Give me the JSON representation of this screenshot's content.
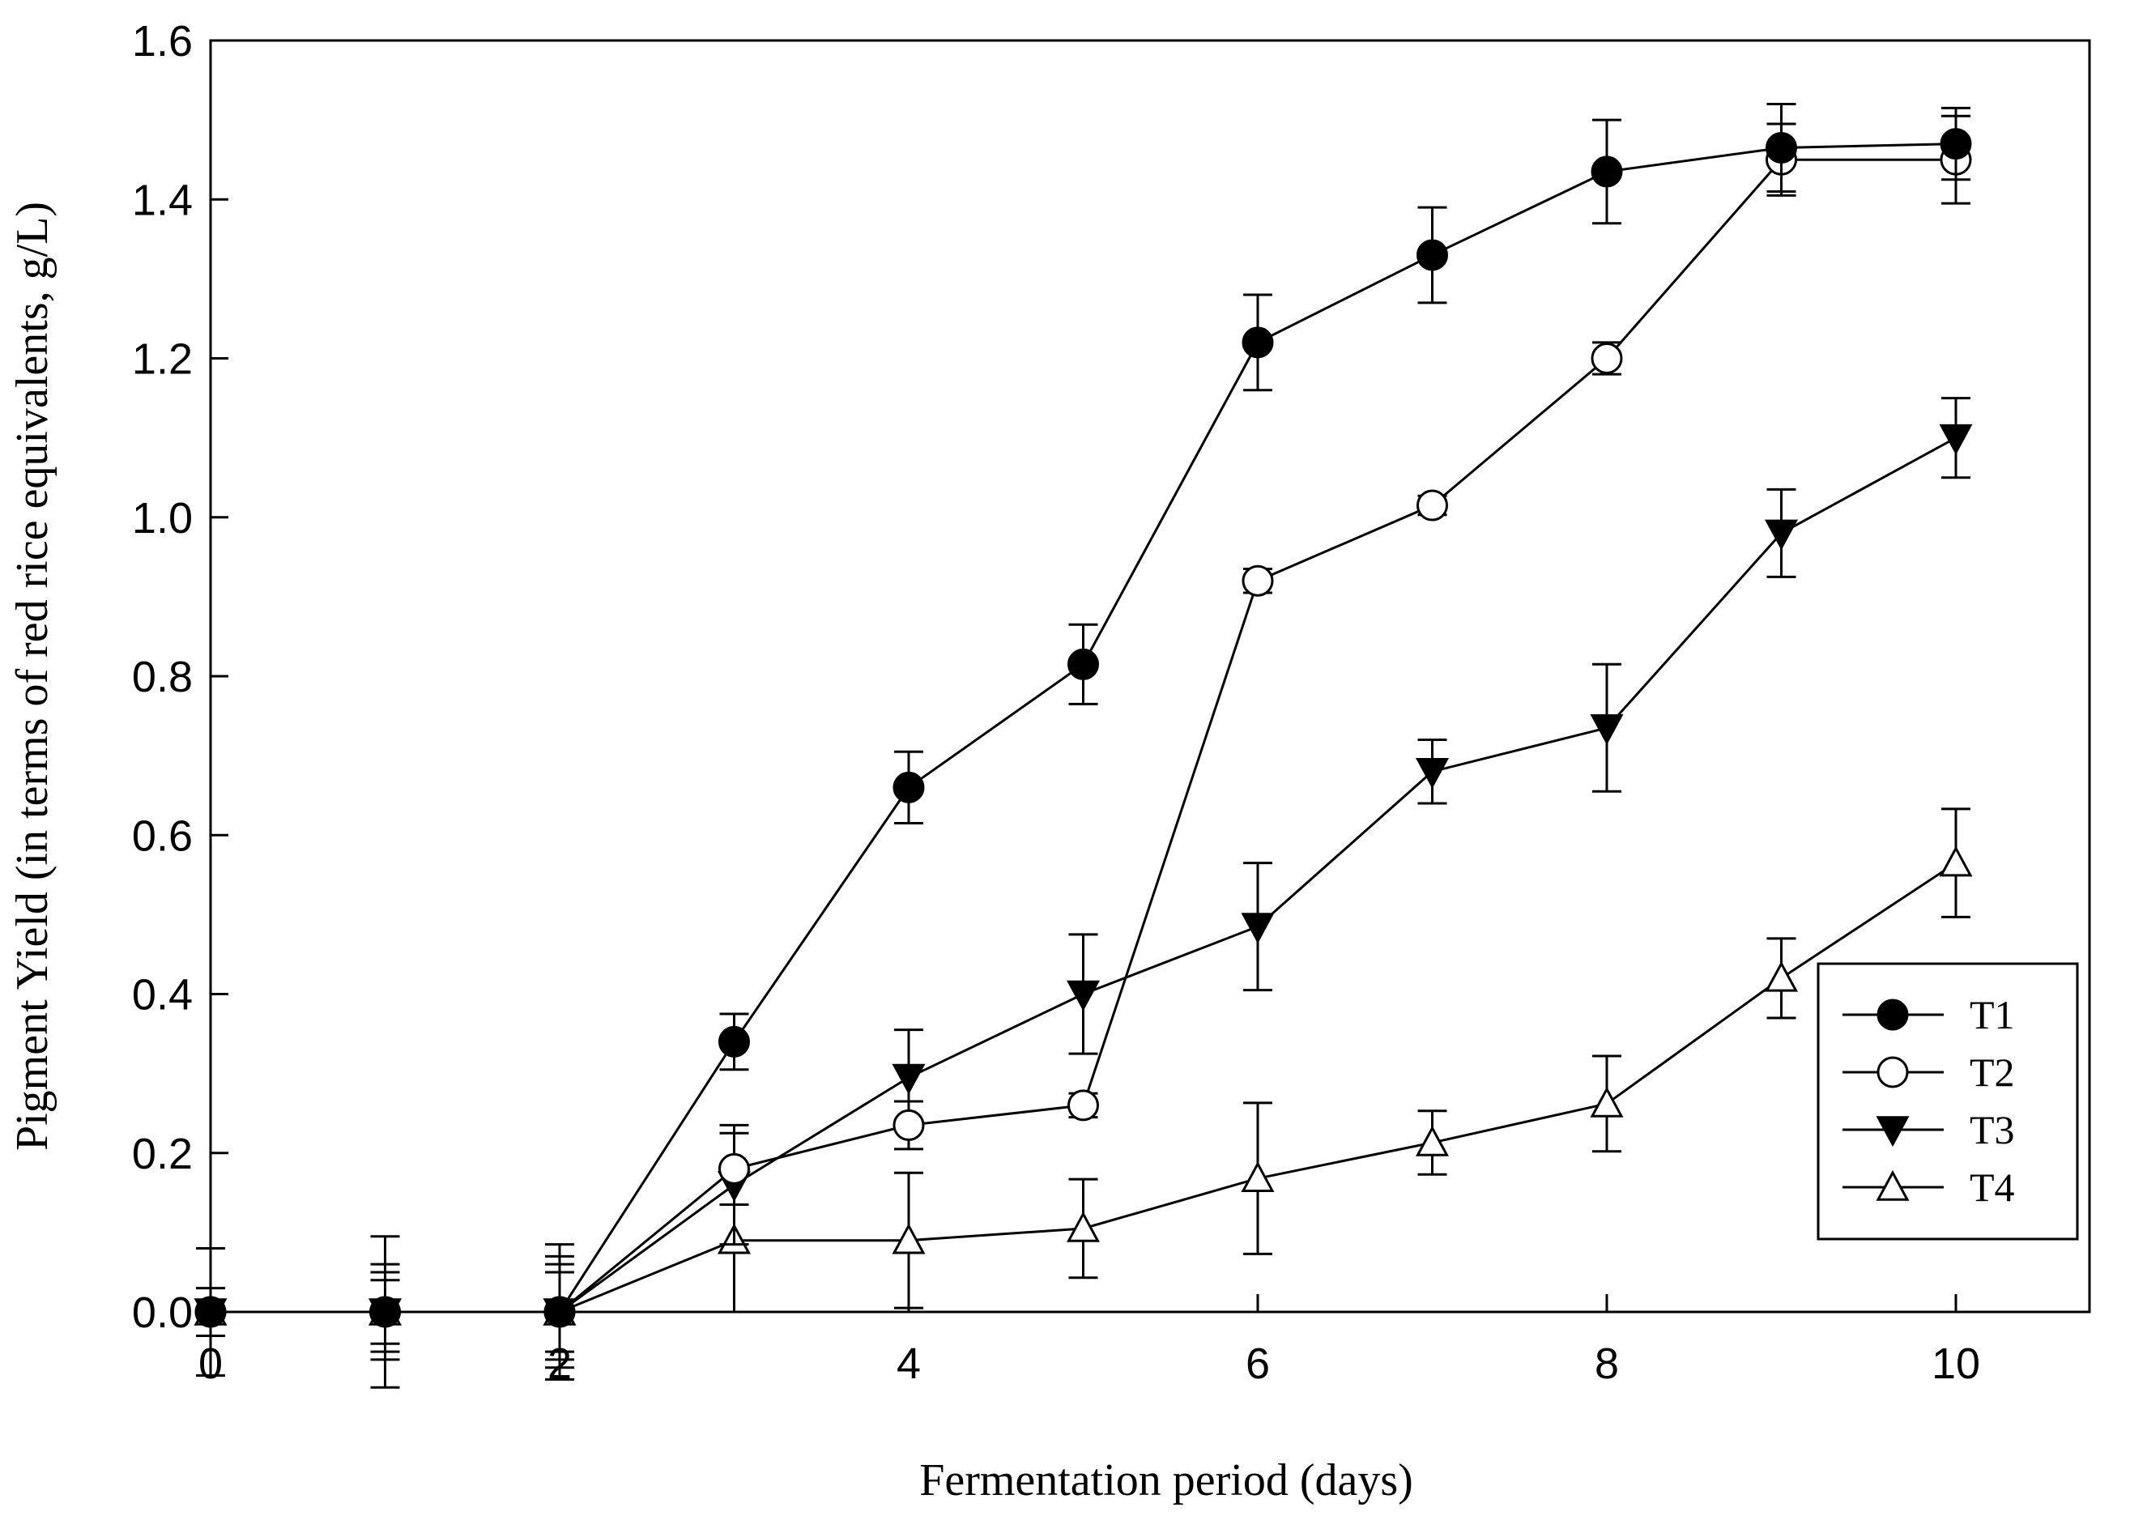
{
  "chart_data": {
    "type": "line",
    "title": "",
    "xlabel": "Fermentation period (days)",
    "ylabel": "Pigment Yield (in terms of red rice equivalents, g/L)",
    "xlim": [
      0,
      11
    ],
    "ylim": [
      0,
      1.6
    ],
    "xticks": [
      0,
      2,
      4,
      6,
      8,
      10
    ],
    "xtick_labels": [
      "0",
      "2",
      "4",
      "6",
      "8",
      "10"
    ],
    "yticks": [
      0,
      0.2,
      0.4,
      0.6,
      0.8,
      1.0,
      1.2,
      1.4,
      1.6
    ],
    "ytick_labels": [
      "0.0",
      "0.2",
      "0.4",
      "0.6",
      "0.8",
      "1.0",
      "1.2",
      "1.4",
      "1.6"
    ],
    "grid": false,
    "legend_position": "bottom-right",
    "x": [
      0,
      1,
      2,
      3,
      4,
      5,
      6,
      7,
      8,
      9,
      10
    ],
    "series": [
      {
        "name": "T1",
        "marker": "filled-circle",
        "values": [
          0.0,
          0.0,
          0.0,
          0.34,
          0.66,
          0.815,
          1.22,
          1.33,
          1.435,
          1.465,
          1.47
        ],
        "errors": [
          0.08,
          0.06,
          0.07,
          0.035,
          0.045,
          0.05,
          0.06,
          0.06,
          0.065,
          0.055,
          0.045
        ]
      },
      {
        "name": "T2",
        "marker": "open-circle",
        "values": [
          0.0,
          0.0,
          0.0,
          0.18,
          0.235,
          0.26,
          0.92,
          1.015,
          1.2,
          1.45,
          1.45
        ],
        "errors": [
          0.03,
          0.05,
          0.05,
          0.045,
          0.03,
          0.015,
          0.015,
          0.012,
          0.02,
          0.045,
          0.055
        ]
      },
      {
        "name": "T3",
        "marker": "filled-triangle-down",
        "values": [
          0.0,
          0.0,
          0.0,
          0.16,
          0.295,
          0.4,
          0.485,
          0.68,
          0.735,
          0.98,
          1.1
        ],
        "errors": [
          0.0,
          0.04,
          0.06,
          0.075,
          0.06,
          0.075,
          0.08,
          0.04,
          0.08,
          0.055,
          0.05
        ]
      },
      {
        "name": "T4",
        "marker": "open-triangle-up",
        "values": [
          0.0,
          0.0,
          0.0,
          0.09,
          0.09,
          0.105,
          0.168,
          0.213,
          0.262,
          0.42,
          0.565
        ],
        "errors": [
          0.0,
          0.095,
          0.085,
          0.09,
          0.085,
          0.062,
          0.095,
          0.04,
          0.06,
          0.05,
          0.068
        ]
      }
    ]
  }
}
